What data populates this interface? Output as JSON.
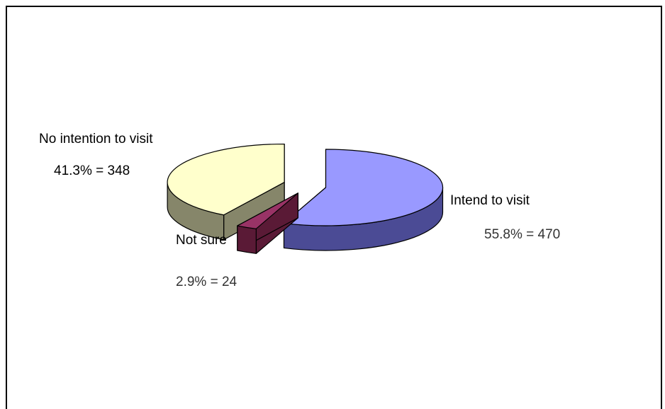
{
  "chart_data": {
    "type": "pie",
    "style": "3d-exploded",
    "categories": [
      "Intend to visit",
      "Not sure",
      "No intention to visit"
    ],
    "values": [
      470,
      24,
      348
    ],
    "percents": [
      55.8,
      2.9,
      41.3
    ],
    "value_labels": [
      "55.8% = 470",
      "2.9% = 24",
      "41.3% = 348"
    ],
    "colors": {
      "Intend to visit": {
        "top": "#9999ff",
        "side": "#4b4b95"
      },
      "Not sure": {
        "top": "#993366",
        "side": "#5a1a36"
      },
      "No intention to visit": {
        "top": "#ffffcc",
        "side": "#86866a"
      }
    },
    "legend": "none",
    "title": ""
  }
}
